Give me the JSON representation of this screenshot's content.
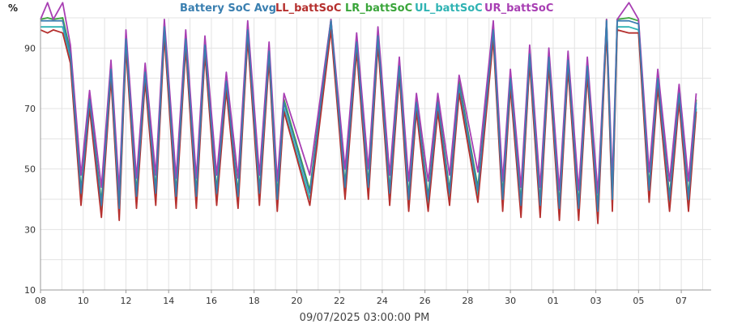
{
  "chart_data": {
    "type": "line",
    "ylabel": "%",
    "xlabel": "09/07/2025 03:00:00 PM",
    "ylim": [
      10,
      100
    ],
    "yticks": [
      10,
      30,
      50,
      70,
      90
    ],
    "xlim": [
      0,
      31.4
    ],
    "x_tick_labels": [
      "08",
      "10",
      "12",
      "14",
      "16",
      "18",
      "20",
      "22",
      "24",
      "26",
      "28",
      "30",
      "01",
      "03",
      "05",
      "07"
    ],
    "x_tick_positions": [
      0,
      2,
      4,
      6,
      8,
      10,
      12,
      14,
      16,
      18,
      20,
      22,
      24,
      26,
      28,
      30
    ],
    "grid": true,
    "legend_placement": "top-center",
    "series": [
      {
        "name": "Battery SoC Avg",
        "color": "#3a7fb0"
      },
      {
        "name": "LL_battSoC",
        "color": "#b5302e"
      },
      {
        "name": "LR_battSoC",
        "color": "#3aa53a"
      },
      {
        "name": "UL_battSoC",
        "color": "#2fb3b3"
      },
      {
        "name": "UR_battSoC",
        "color": "#a83fb3"
      }
    ],
    "cycles": [
      {
        "x": 0.0,
        "hi": 99,
        "lo": 99
      },
      {
        "x": 0.6,
        "hi": 99,
        "lo": 99
      },
      {
        "x": 1.4,
        "hi": 88,
        "lo": 42
      },
      {
        "x": 2.3,
        "hi": 73,
        "lo": 38
      },
      {
        "x": 3.3,
        "hi": 83,
        "lo": 37
      },
      {
        "x": 4.0,
        "hi": 93,
        "lo": 41
      },
      {
        "x": 4.9,
        "hi": 82,
        "lo": 42
      },
      {
        "x": 5.8,
        "hi": 97,
        "lo": 41
      },
      {
        "x": 6.8,
        "hi": 93,
        "lo": 41
      },
      {
        "x": 7.7,
        "hi": 91,
        "lo": 42
      },
      {
        "x": 8.7,
        "hi": 79,
        "lo": 41
      },
      {
        "x": 9.7,
        "hi": 96,
        "lo": 42
      },
      {
        "x": 10.7,
        "hi": 89,
        "lo": 40
      },
      {
        "x": 11.4,
        "hi": 72,
        "lo": 42
      },
      {
        "x": 13.6,
        "hi": 99,
        "lo": 44
      },
      {
        "x": 14.8,
        "hi": 92,
        "lo": 44
      },
      {
        "x": 15.8,
        "hi": 94,
        "lo": 42
      },
      {
        "x": 16.8,
        "hi": 84,
        "lo": 40
      },
      {
        "x": 17.6,
        "hi": 72,
        "lo": 40
      },
      {
        "x": 18.6,
        "hi": 72,
        "lo": 42
      },
      {
        "x": 19.6,
        "hi": 78,
        "lo": 43
      },
      {
        "x": 21.2,
        "hi": 96,
        "lo": 40
      },
      {
        "x": 22.0,
        "hi": 80,
        "lo": 38
      },
      {
        "x": 22.9,
        "hi": 88,
        "lo": 38
      },
      {
        "x": 23.8,
        "hi": 87,
        "lo": 37
      },
      {
        "x": 24.7,
        "hi": 86,
        "lo": 37
      },
      {
        "x": 25.6,
        "hi": 84,
        "lo": 36
      },
      {
        "x": 26.5,
        "hi": 99,
        "lo": 40
      },
      {
        "x": 27.0,
        "hi": 99,
        "lo": 99
      },
      {
        "x": 28.0,
        "hi": 98,
        "lo": 43
      },
      {
        "x": 28.9,
        "hi": 80,
        "lo": 40
      },
      {
        "x": 29.9,
        "hi": 75,
        "lo": 40
      },
      {
        "x": 30.7,
        "hi": 72,
        "lo": 40
      }
    ]
  }
}
